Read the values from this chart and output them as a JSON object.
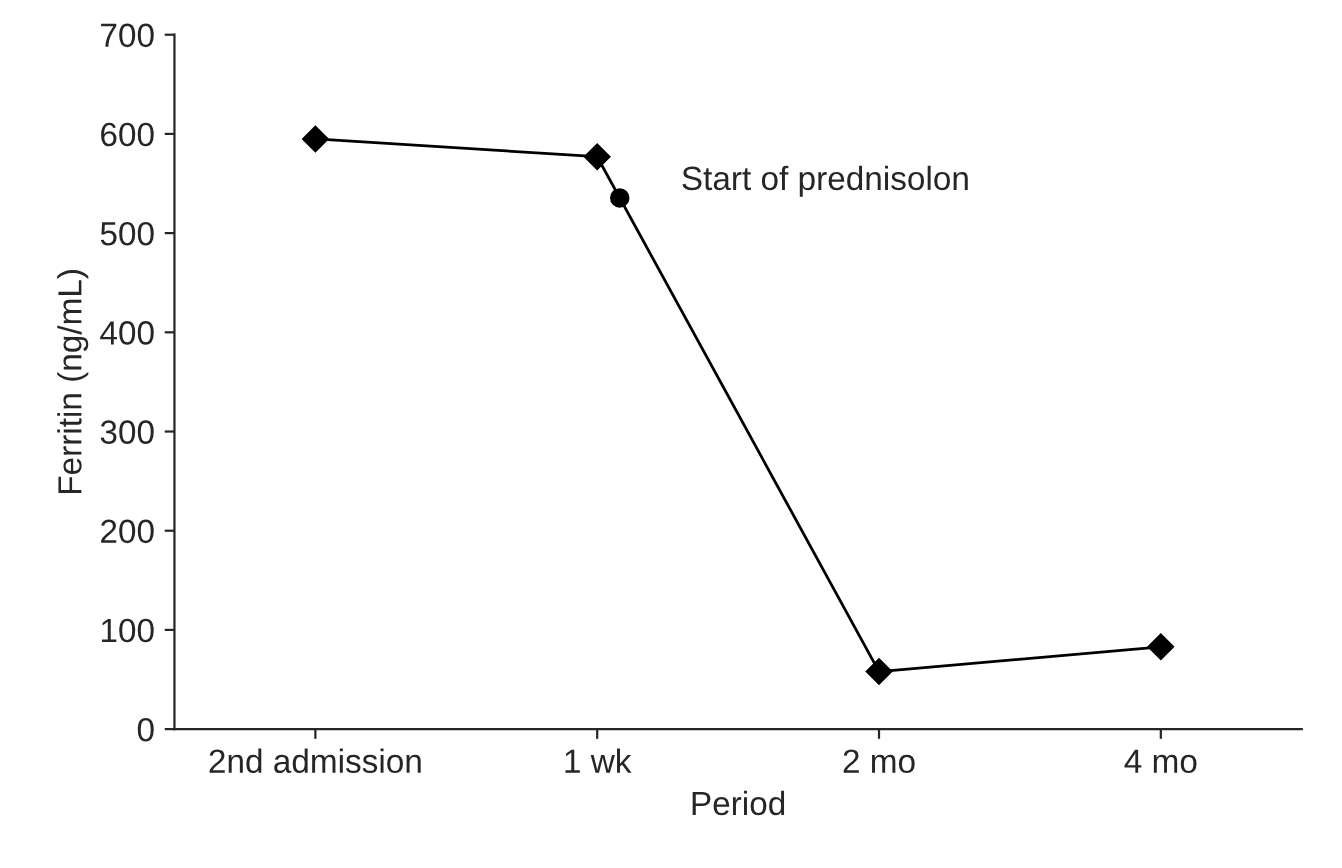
{
  "chart_data": {
    "type": "line",
    "xlabel": "Period",
    "ylabel": "Ferritin (ng/mL)",
    "categories": [
      "2nd admission",
      "1 wk",
      "2 mo",
      "4 mo"
    ],
    "series": [
      {
        "color": "#000000",
        "values": [
          595,
          577,
          58,
          83
        ]
      }
    ],
    "marker": "diamond",
    "line_style": "solid",
    "ylim": [
      0,
      700
    ],
    "yticks": [
      0,
      100,
      200,
      300,
      400,
      500,
      600,
      700
    ],
    "annotations": [
      "Start of prednisolon"
    ],
    "grid": false,
    "legend": false
  }
}
